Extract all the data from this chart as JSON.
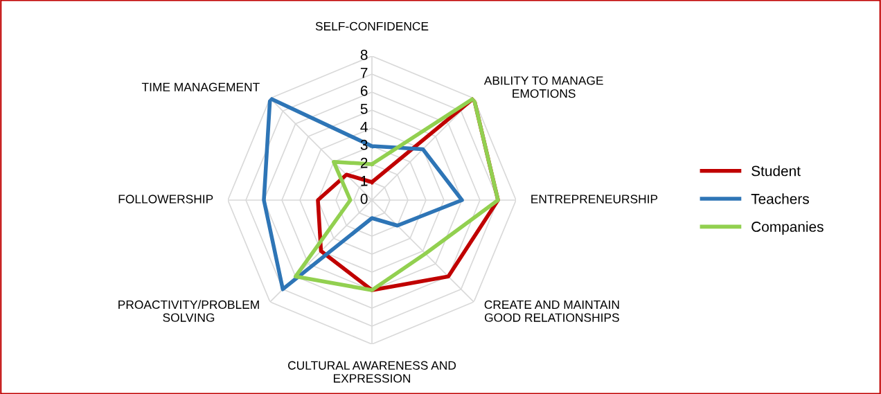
{
  "chart_data": {
    "type": "radar",
    "categories": [
      "SELF-CONFIDENCE",
      "ABILITY TO MANAGE\nEMOTIONS",
      "ENTREPRENEURSHIP",
      "CREATE AND MAINTAIN\nGOOD RELATIONSHIPS",
      "CULTURAL AWARENESS AND\nEXPRESSION",
      "PROACTIVITY/PROBLEM\nSOLVING",
      "FOLLOWERSHIP",
      "TIME MANAGEMENT"
    ],
    "series": [
      {
        "name": "Student",
        "color": "#c00000",
        "values": [
          1,
          8,
          7,
          6,
          5,
          4,
          3,
          2
        ]
      },
      {
        "name": "Teachers",
        "color": "#2e75b6",
        "values": [
          3,
          4,
          5,
          2,
          1,
          7,
          6,
          8
        ]
      },
      {
        "name": "Companies",
        "color": "#92d050",
        "values": [
          2,
          8,
          7,
          4.2,
          5,
          6,
          1.2,
          3
        ]
      }
    ],
    "ylim": [
      0,
      8
    ],
    "yticks": [
      0,
      1,
      2,
      3,
      4,
      5,
      6,
      7,
      8
    ],
    "grid": true,
    "legend": "right",
    "marker": "none"
  }
}
